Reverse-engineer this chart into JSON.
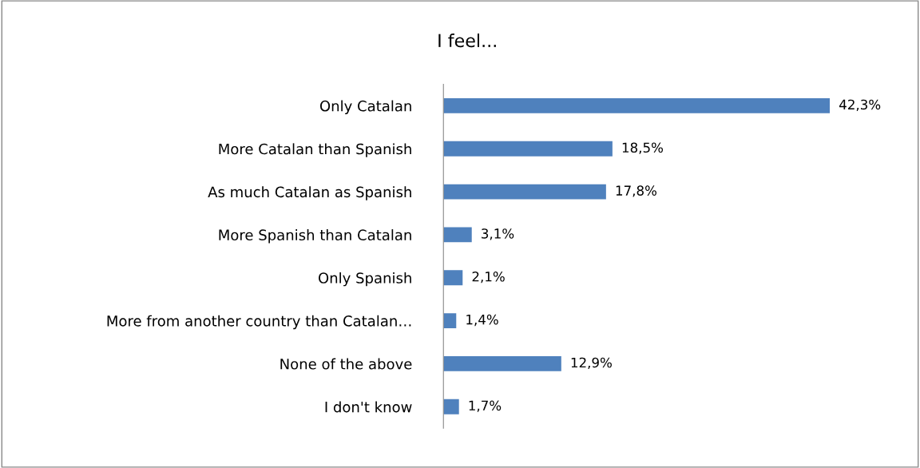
{
  "chart_data": {
    "type": "bar",
    "orientation": "horizontal",
    "title": "I feel...",
    "categories": [
      "Only Catalan",
      "More Catalan than Spanish",
      "As much Catalan as Spanish",
      "More Spanish than Catalan",
      "Only Spanish",
      "More from another country than Catalan…",
      "None of the above",
      "I don't know"
    ],
    "values": [
      42.3,
      18.5,
      17.8,
      3.1,
      2.1,
      1.4,
      12.9,
      1.7
    ],
    "value_labels": [
      "42,3%",
      "18,5%",
      "17,8%",
      "3,1%",
      "2,1%",
      "1,4%",
      "12,9%",
      "1,7%"
    ],
    "color": "#4f81bd",
    "grid": false,
    "legend": false
  }
}
